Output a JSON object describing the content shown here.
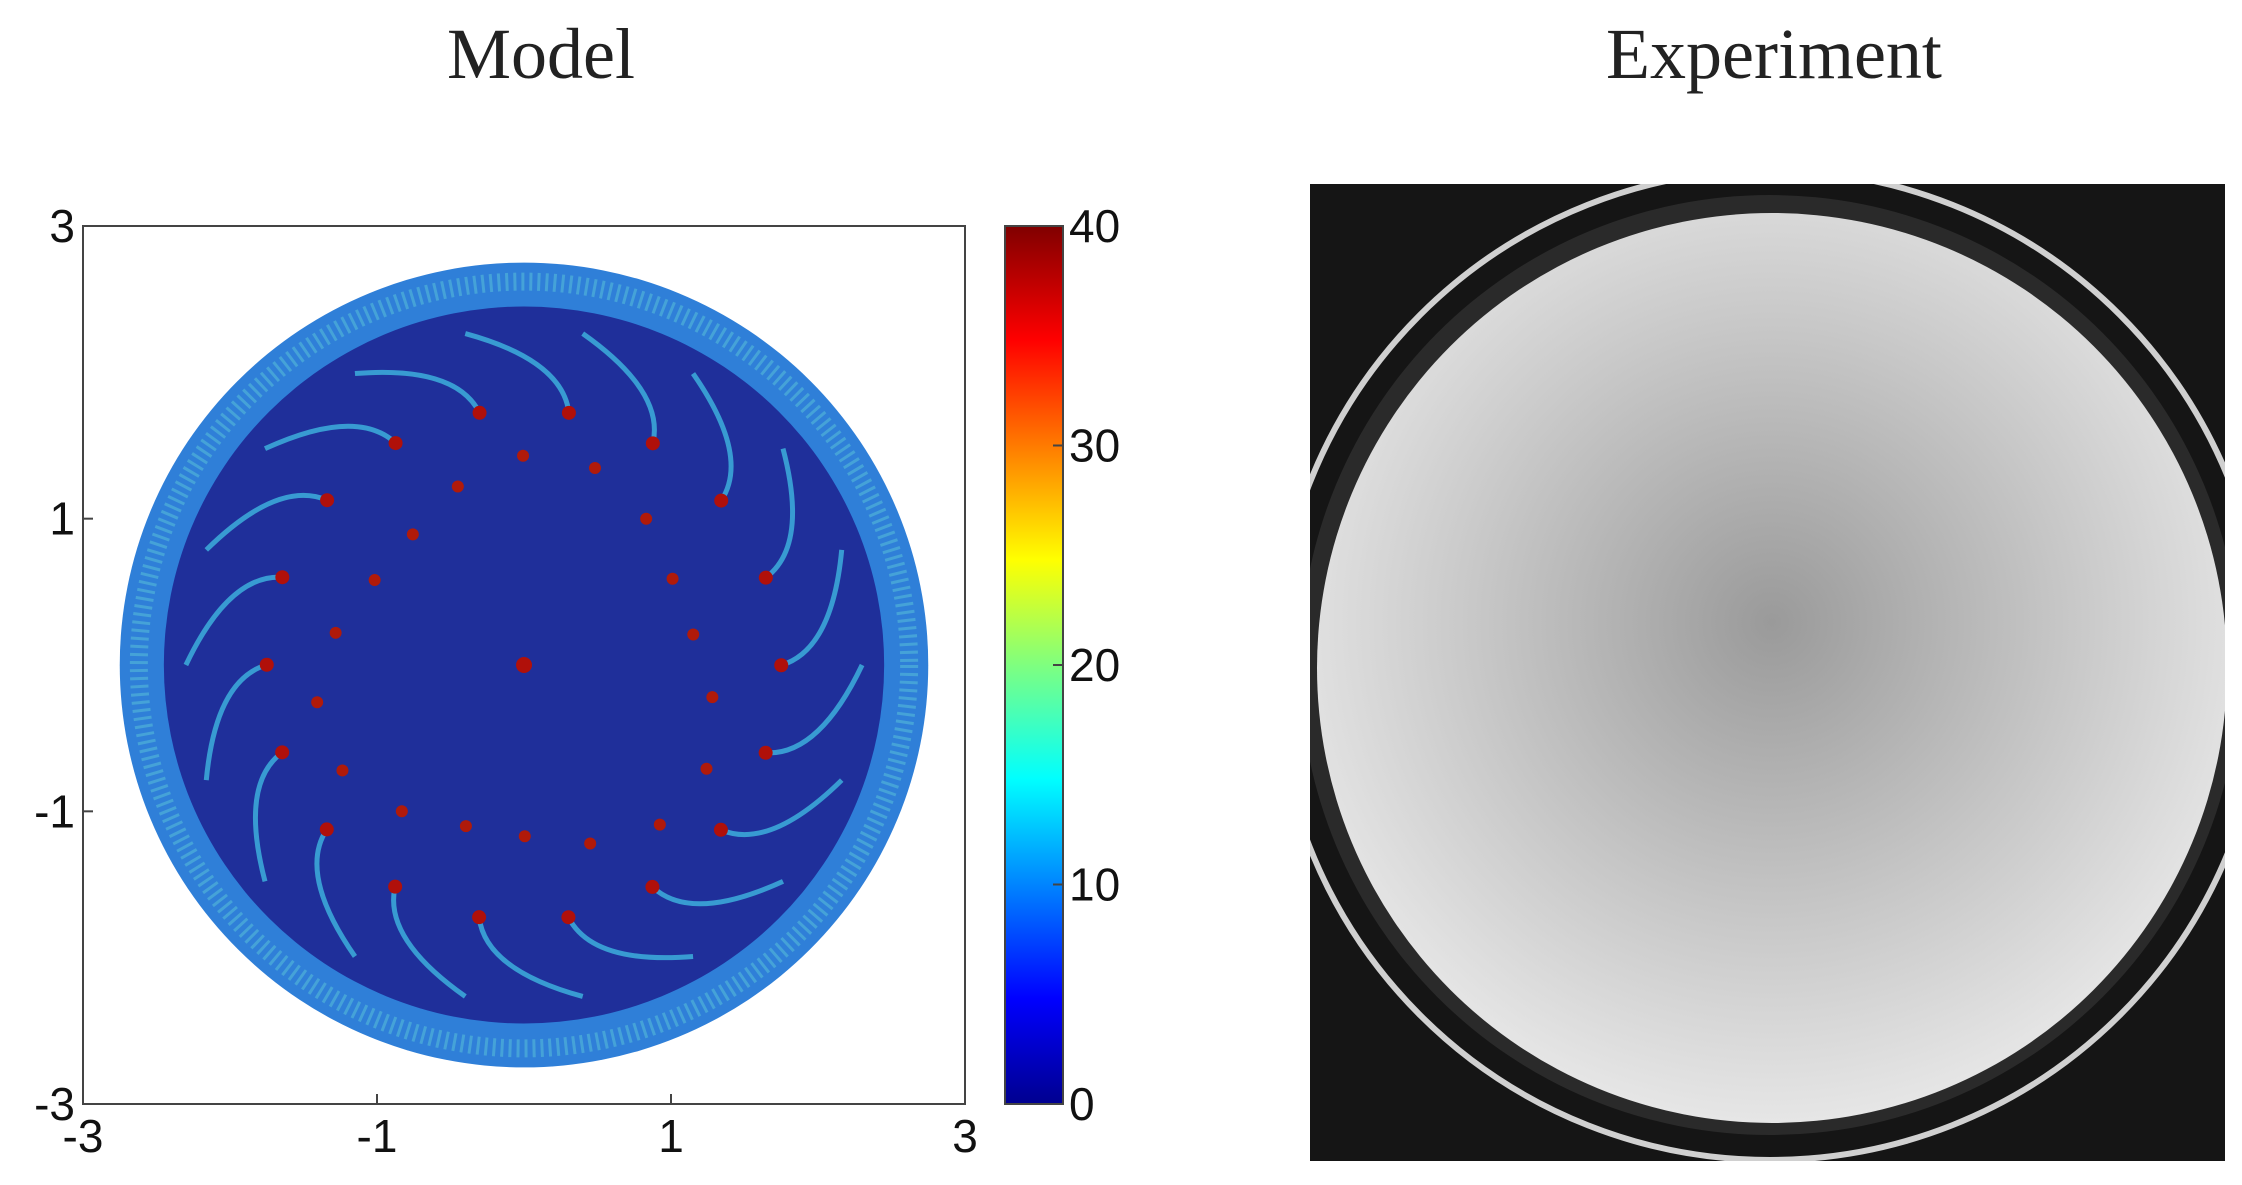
{
  "chart_data": [
    {
      "type": "heatmap",
      "title": "Model",
      "xlim": [
        -3,
        3
      ],
      "ylim": [
        -3,
        3
      ],
      "xticks": [
        -3,
        -1,
        1,
        3
      ],
      "yticks": [
        -3,
        -1,
        1,
        3
      ],
      "clim": [
        0,
        40
      ],
      "cticks": [
        0,
        10,
        20,
        30,
        40
      ]
    },
    {
      "type": "image",
      "title": "Experiment"
    }
  ]
}
